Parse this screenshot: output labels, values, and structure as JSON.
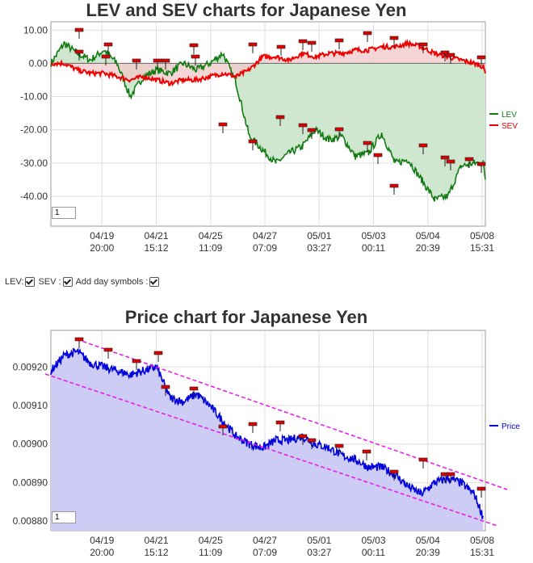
{
  "lev_chart": {
    "title": "LEV and SEV charts for Japanese Yen",
    "zoom_value": "1",
    "yticks": [
      "10.00",
      "0.00",
      "-10.00",
      "-20.00",
      "-30.00",
      "-40.00"
    ],
    "yvals": [
      10,
      0,
      -10,
      -20,
      -30,
      -40
    ],
    "ylim": [
      -49,
      12.5
    ],
    "legend": [
      {
        "name": "LEV",
        "color": "#127a12"
      },
      {
        "name": "SEV",
        "color": "#ee0000"
      }
    ]
  },
  "controls": {
    "lev_label": "LEV:",
    "sev_label": "SEV :",
    "day_symbols_label": "Add day symbols :"
  },
  "price_chart": {
    "title": "Price chart for Japanese Yen",
    "zoom_value": "1",
    "yticks": [
      "0.00920",
      "0.00910",
      "0.00900",
      "0.00890",
      "0.00880"
    ],
    "yvals": [
      0.0092,
      0.0091,
      0.009,
      0.0089,
      0.0088
    ],
    "ylim": [
      0.008775,
      0.009295
    ],
    "legend": [
      {
        "name": "Price",
        "color": "#0000dd"
      }
    ]
  },
  "xaxis": {
    "ticks": [
      {
        "date": "04/19",
        "time": "20:00"
      },
      {
        "date": "04/21",
        "time": "15:12"
      },
      {
        "date": "04/25",
        "time": "11:09"
      },
      {
        "date": "04/27",
        "time": "07:09"
      },
      {
        "date": "05/01",
        "time": "03:27"
      },
      {
        "date": "05/03",
        "time": "00:11"
      },
      {
        "date": "05/04",
        "time": "20:39"
      },
      {
        "date": "05/08",
        "time": "15:31"
      }
    ]
  },
  "chart_data": [
    {
      "type": "line",
      "title": "LEV and SEV charts for Japanese Yen",
      "categories": [
        "04/19 20:00",
        "04/21 15:12",
        "04/25 11:09",
        "04/27 07:09",
        "05/01 03:27",
        "05/03 00:11",
        "05/04 20:39",
        "05/08 15:31"
      ],
      "ylim": [
        -49,
        12.5
      ],
      "grid": true,
      "legend_position": "right",
      "series": [
        {
          "name": "LEV",
          "color": "#127a12",
          "x": [
            0,
            0.3,
            0.6,
            0.9,
            1.2,
            1.5,
            1.8,
            2.1,
            2.4,
            2.7,
            3.0,
            3.3,
            3.6,
            3.9,
            4.2,
            4.5,
            4.8,
            5.1,
            5.4,
            5.7,
            6.0,
            6.3,
            6.6,
            6.9,
            7.2,
            7.5
          ],
          "values": [
            0,
            6,
            3,
            1,
            4,
            0,
            -10,
            -4,
            -2,
            -3,
            0,
            -2,
            0,
            3,
            -6,
            -22,
            -26,
            -30,
            -27,
            -25,
            -20,
            -23,
            -22,
            -28,
            -27,
            -21
          ]
        },
        {
          "name": "SEV",
          "color": "#ee0000",
          "x": [
            0,
            0.3,
            0.6,
            0.9,
            1.2,
            1.5,
            1.8,
            2.1,
            2.4,
            2.7,
            3.0,
            3.3,
            3.6,
            3.9,
            4.2,
            4.5,
            4.8,
            5.1,
            5.4,
            5.7,
            6.0,
            6.3,
            6.6,
            6.9,
            7.2,
            7.5
          ],
          "values": [
            0,
            0,
            -2,
            -3,
            -3,
            -4,
            -5,
            -4,
            -5,
            -6,
            -5,
            -5,
            -4,
            -3,
            -4,
            -2,
            2,
            2,
            1,
            3,
            2,
            3,
            3,
            4,
            4,
            5
          ]
        }
      ],
      "series_tail": {
        "x": [
          7.8,
          8.1,
          8.4,
          8.7,
          9.0,
          9.3,
          9.6,
          9.8
        ],
        "LEV": [
          -30,
          -29,
          -35,
          -41,
          -40,
          -31,
          -30,
          -30
        ],
        "SEV": [
          5,
          6,
          5,
          3,
          2,
          1,
          0,
          -1
        ],
        "LEV_end": [
          -33,
          -35
        ],
        "SEV_end": [
          -2,
          -3
        ]
      }
    },
    {
      "type": "area",
      "title": "Price chart for Japanese Yen",
      "categories": [
        "04/19 20:00",
        "04/21 15:12",
        "04/25 11:09",
        "04/27 07:09",
        "05/01 03:27",
        "05/03 00:11",
        "05/04 20:39",
        "05/08 15:31"
      ],
      "ylim": [
        0.008775,
        0.009295
      ],
      "grid": true,
      "legend_position": "right",
      "series": [
        {
          "name": "Price",
          "color": "#0000dd",
          "x": [
            0,
            0.3,
            0.6,
            0.9,
            1.2,
            1.5,
            1.8,
            2.1,
            2.4,
            2.7,
            3.0,
            3.3,
            3.6,
            3.9,
            4.2,
            4.5,
            4.8,
            5.1,
            5.4,
            5.7,
            6.0,
            6.3,
            6.6,
            6.9,
            7.2,
            7.5,
            7.8,
            8.1,
            8.4,
            8.7,
            9.0,
            9.3,
            9.6,
            9.8
          ],
          "values": [
            0.00919,
            0.00923,
            0.00924,
            0.00921,
            0.0092,
            0.00919,
            0.00918,
            0.00919,
            0.0092,
            0.00912,
            0.00911,
            0.00913,
            0.0091,
            0.00906,
            0.00902,
            0.009,
            0.00899,
            0.00901,
            0.00901,
            0.00902,
            0.009,
            0.00899,
            0.00897,
            0.00896,
            0.00894,
            0.00894,
            0.00892,
            0.00889,
            0.00887,
            0.0089,
            0.00891,
            0.0089,
            0.00887,
            0.00881
          ]
        }
      ]
    }
  ]
}
